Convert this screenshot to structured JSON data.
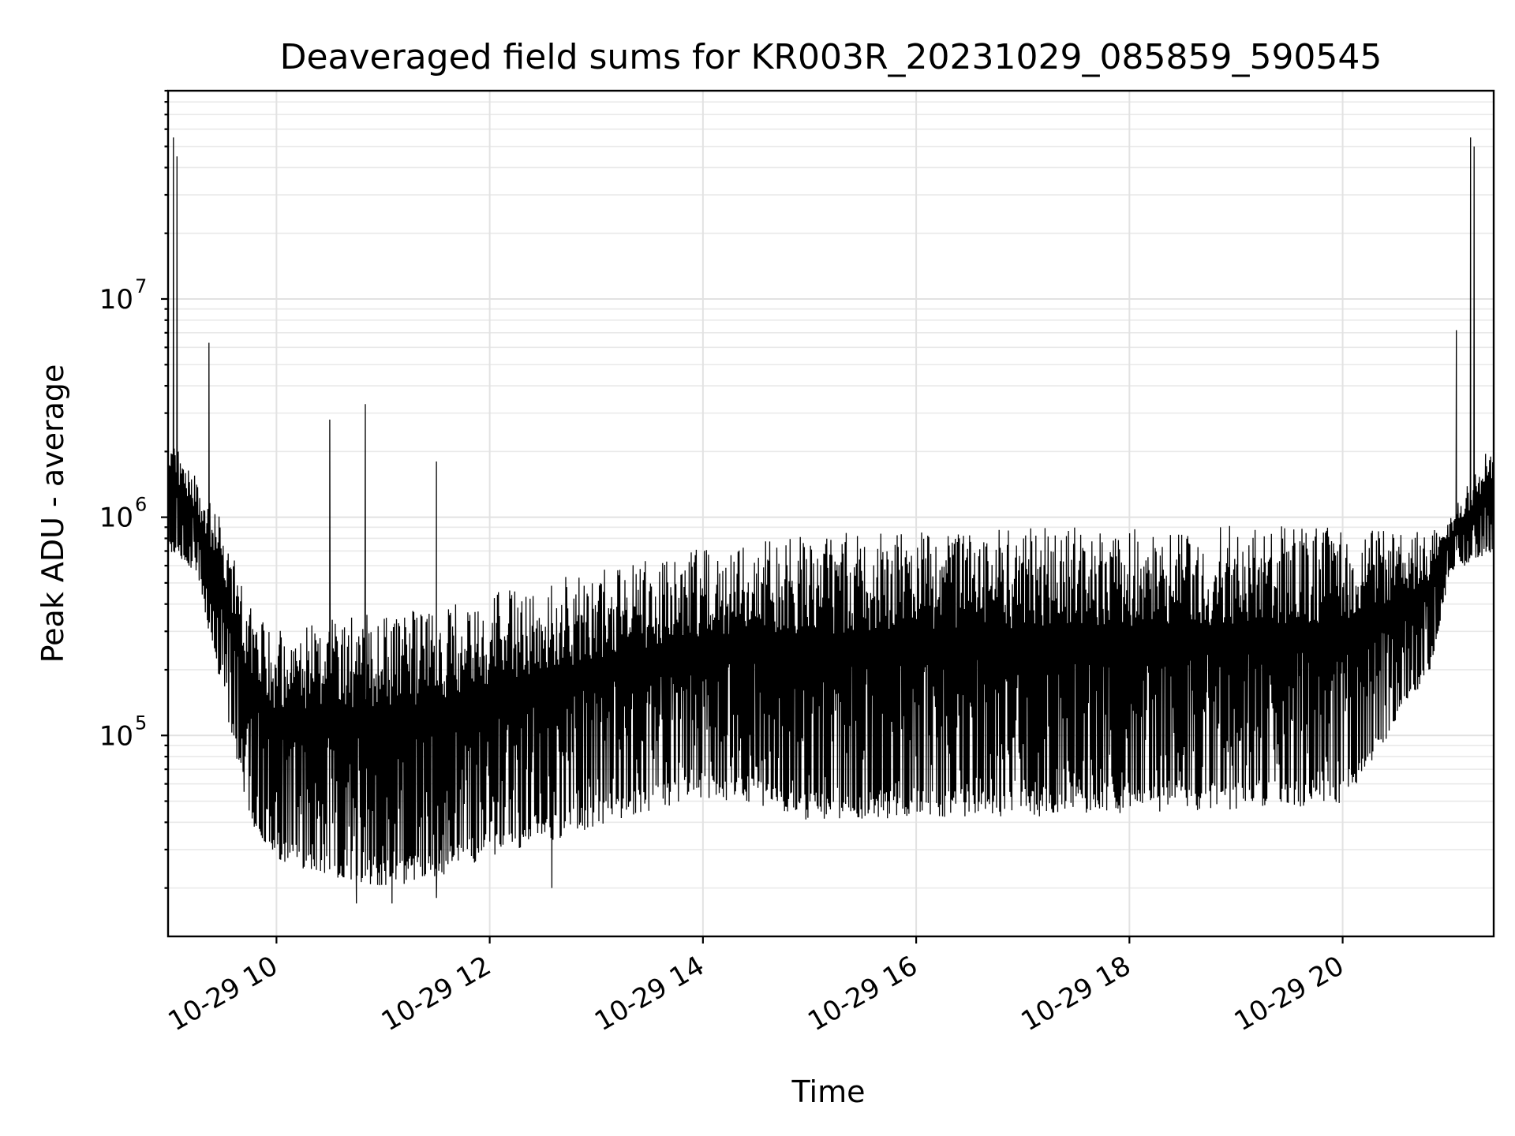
{
  "chart_data": {
    "type": "line",
    "title": "Deaveraged field sums for KR003R_20231029_085859_590545",
    "xlabel": "Time",
    "ylabel": "Peak ADU - average",
    "xscale": "time",
    "yscale": "log",
    "xlim": [
      "2023-10-29 08:59",
      "2023-10-29 21:25"
    ],
    "ylim": [
      12000,
      90000000
    ],
    "grid": true,
    "x_ticks": [
      {
        "value": "2023-10-29 10:00",
        "label": "10-29 10"
      },
      {
        "value": "2023-10-29 12:00",
        "label": "10-29 12"
      },
      {
        "value": "2023-10-29 14:00",
        "label": "10-29 14"
      },
      {
        "value": "2023-10-29 16:00",
        "label": "10-29 16"
      },
      {
        "value": "2023-10-29 18:00",
        "label": "10-29 18"
      },
      {
        "value": "2023-10-29 20:00",
        "label": "10-29 20"
      }
    ],
    "y_ticks": [
      {
        "value": 100000,
        "base": "10",
        "exp": "5"
      },
      {
        "value": 1000000,
        "base": "10",
        "exp": "6"
      },
      {
        "value": 10000000,
        "base": "10",
        "exp": "7"
      }
    ],
    "series": [
      {
        "color": "#000000",
        "envelope": [
          {
            "x": "2023-10-29 09:00",
            "low": 700000,
            "high": 2500000
          },
          {
            "x": "2023-10-29 09:15",
            "low": 550000,
            "high": 1500000
          },
          {
            "x": "2023-10-29 09:30",
            "low": 150000,
            "high": 1000000
          },
          {
            "x": "2023-10-29 09:45",
            "low": 40000,
            "high": 400000
          },
          {
            "x": "2023-10-29 10:00",
            "low": 27000,
            "high": 300000
          },
          {
            "x": "2023-10-29 10:30",
            "low": 22000,
            "high": 350000
          },
          {
            "x": "2023-10-29 11:00",
            "low": 20000,
            "high": 380000
          },
          {
            "x": "2023-10-29 11:30",
            "low": 22000,
            "high": 380000
          },
          {
            "x": "2023-10-29 12:00",
            "low": 28000,
            "high": 450000
          },
          {
            "x": "2023-10-29 12:30",
            "low": 32000,
            "high": 500000
          },
          {
            "x": "2023-10-29 13:00",
            "low": 38000,
            "high": 580000
          },
          {
            "x": "2023-10-29 13:30",
            "low": 45000,
            "high": 640000
          },
          {
            "x": "2023-10-29 14:00",
            "low": 52000,
            "high": 720000
          },
          {
            "x": "2023-10-29 14:30",
            "low": 48000,
            "high": 780000
          },
          {
            "x": "2023-10-29 15:00",
            "low": 40000,
            "high": 830000
          },
          {
            "x": "2023-10-29 16:00",
            "low": 42000,
            "high": 880000
          },
          {
            "x": "2023-10-29 17:00",
            "low": 42000,
            "high": 900000
          },
          {
            "x": "2023-10-29 18:00",
            "low": 44000,
            "high": 920000
          },
          {
            "x": "2023-10-29 19:00",
            "low": 45000,
            "high": 920000
          },
          {
            "x": "2023-10-29 20:00",
            "low": 48000,
            "high": 900000
          },
          {
            "x": "2023-10-29 20:50",
            "low": 200000,
            "high": 850000
          },
          {
            "x": "2023-10-29 21:00",
            "low": 550000,
            "high": 1000000
          },
          {
            "x": "2023-10-29 21:25",
            "low": 700000,
            "high": 2300000
          }
        ],
        "peaks": [
          {
            "x": "2023-10-29 09:02",
            "y": 55000000
          },
          {
            "x": "2023-10-29 09:04",
            "y": 45000000
          },
          {
            "x": "2023-10-29 09:22",
            "y": 6300000
          },
          {
            "x": "2023-10-29 10:30",
            "y": 2800000
          },
          {
            "x": "2023-10-29 10:50",
            "y": 3300000
          },
          {
            "x": "2023-10-29 11:30",
            "y": 1800000
          },
          {
            "x": "2023-10-29 21:04",
            "y": 7200000
          },
          {
            "x": "2023-10-29 21:12",
            "y": 55000000
          },
          {
            "x": "2023-10-29 21:14",
            "y": 50000000
          }
        ],
        "dips": [
          {
            "x": "2023-10-29 10:45",
            "y": 17000
          },
          {
            "x": "2023-10-29 11:05",
            "y": 17000
          },
          {
            "x": "2023-10-29 11:30",
            "y": 18000
          },
          {
            "x": "2023-10-29 12:35",
            "y": 20000
          }
        ]
      }
    ]
  }
}
